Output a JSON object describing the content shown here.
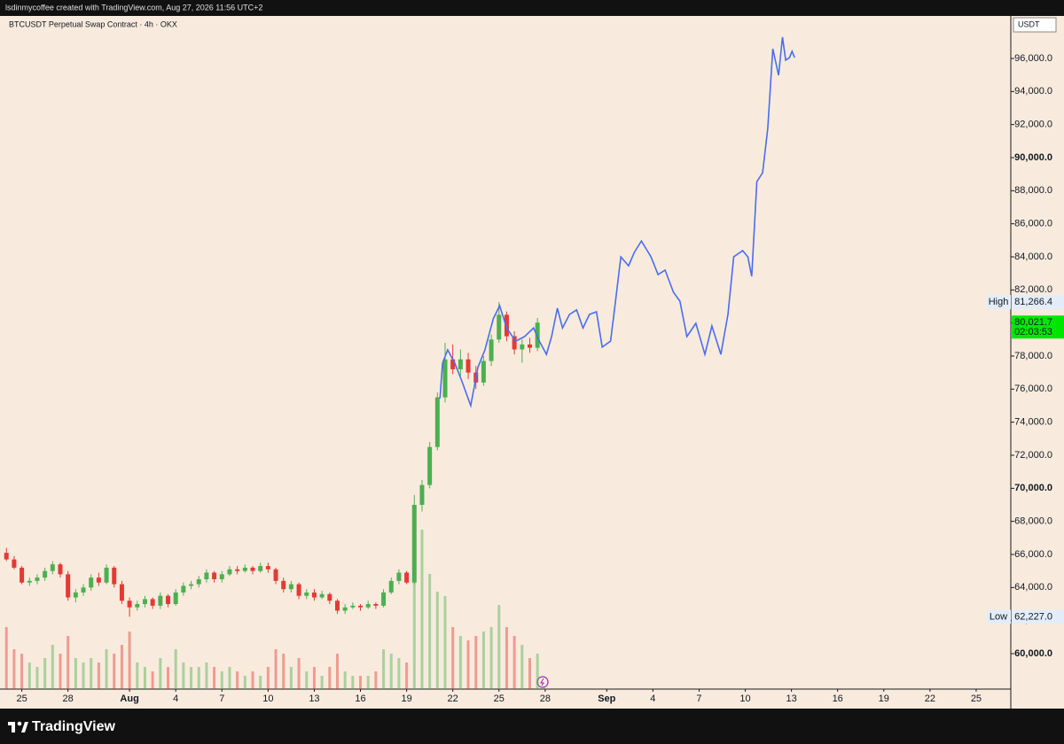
{
  "header": "lsdinmycoffee created with TradingView.com, Aug 27, 2026 11:56 UTC+2",
  "footer": "TradingView",
  "chart_data": {
    "type": "candlestick",
    "title": "BTCUSDT Perpetual Swap Contract · 4h · OKX",
    "currency": "USDT",
    "ylim": [
      57857,
      98571
    ],
    "yticks": [
      {
        "value": 60000,
        "label": "60,000.0"
      },
      {
        "value": 62000,
        "label": "62,000.0"
      },
      {
        "value": 64000,
        "label": "64,000.0"
      },
      {
        "value": 66000,
        "label": "66,000.0"
      },
      {
        "value": 68000,
        "label": "68,000.0"
      },
      {
        "value": 70000,
        "label": "70,000.0"
      },
      {
        "value": 72000,
        "label": "72,000.0"
      },
      {
        "value": 74000,
        "label": "74,000.0"
      },
      {
        "value": 76000,
        "label": "76,000.0"
      },
      {
        "value": 78000,
        "label": "78,000.0"
      },
      {
        "value": 80000,
        "label": "80,000.0"
      },
      {
        "value": 82000,
        "label": "82,000.0"
      },
      {
        "value": 84000,
        "label": "84,000.0"
      },
      {
        "value": 86000,
        "label": "86,000.0"
      },
      {
        "value": 88000,
        "label": "88,000.0"
      },
      {
        "value": 90000,
        "label": "90,000.0"
      },
      {
        "value": 92000,
        "label": "92,000.0"
      },
      {
        "value": 94000,
        "label": "94,000.0"
      },
      {
        "value": 96000,
        "label": "96,000.0"
      }
    ],
    "xlim": [
      "2026-07-23T14:00",
      "2026-09-27T06:00"
    ],
    "xticks": [
      {
        "value": "2026-07-25T00:00",
        "label": "25"
      },
      {
        "value": "2026-07-28T00:00",
        "label": "28"
      },
      {
        "value": "2026-08-01T00:00",
        "label": "Aug"
      },
      {
        "value": "2026-08-04T00:00",
        "label": "4"
      },
      {
        "value": "2026-08-07T00:00",
        "label": "7"
      },
      {
        "value": "2026-08-10T00:00",
        "label": "10"
      },
      {
        "value": "2026-08-13T00:00",
        "label": "13"
      },
      {
        "value": "2026-08-16T00:00",
        "label": "16"
      },
      {
        "value": "2026-08-19T00:00",
        "label": "19"
      },
      {
        "value": "2026-08-22T00:00",
        "label": "22"
      },
      {
        "value": "2026-08-25T00:00",
        "label": "25"
      },
      {
        "value": "2026-08-28T00:00",
        "label": "28"
      },
      {
        "value": "2026-09-01T00:00",
        "label": "Sep"
      },
      {
        "value": "2026-09-04T00:00",
        "label": "4"
      },
      {
        "value": "2026-09-07T00:00",
        "label": "7"
      },
      {
        "value": "2026-09-10T00:00",
        "label": "10"
      },
      {
        "value": "2026-09-13T00:00",
        "label": "13"
      },
      {
        "value": "2026-09-16T00:00",
        "label": "16"
      },
      {
        "value": "2026-09-19T00:00",
        "label": "19"
      },
      {
        "value": "2026-09-22T00:00",
        "label": "22"
      },
      {
        "value": "2026-09-25T00:00",
        "label": "25"
      }
    ],
    "up_color": "#4caf50",
    "down_color": "#e53935",
    "candles": {
      "x": [
        "2026-07-24T00:00",
        "2026-07-24T12:00",
        "2026-07-25T00:00",
        "2026-07-25T12:00",
        "2026-07-26T00:00",
        "2026-07-26T12:00",
        "2026-07-27T00:00",
        "2026-07-27T12:00",
        "2026-07-28T00:00",
        "2026-07-28T12:00",
        "2026-07-29T00:00",
        "2026-07-29T12:00",
        "2026-07-30T00:00",
        "2026-07-30T12:00",
        "2026-07-31T00:00",
        "2026-07-31T12:00",
        "2026-08-01T00:00",
        "2026-08-01T12:00",
        "2026-08-02T00:00",
        "2026-08-02T12:00",
        "2026-08-03T00:00",
        "2026-08-03T12:00",
        "2026-08-04T00:00",
        "2026-08-04T12:00",
        "2026-08-05T00:00",
        "2026-08-05T12:00",
        "2026-08-06T00:00",
        "2026-08-06T12:00",
        "2026-08-07T00:00",
        "2026-08-07T12:00",
        "2026-08-08T00:00",
        "2026-08-08T12:00",
        "2026-08-09T00:00",
        "2026-08-09T12:00",
        "2026-08-10T00:00",
        "2026-08-10T12:00",
        "2026-08-11T00:00",
        "2026-08-11T12:00",
        "2026-08-12T00:00",
        "2026-08-12T12:00",
        "2026-08-13T00:00",
        "2026-08-13T12:00",
        "2026-08-14T00:00",
        "2026-08-14T12:00",
        "2026-08-15T00:00",
        "2026-08-15T12:00",
        "2026-08-16T00:00",
        "2026-08-16T12:00",
        "2026-08-17T00:00",
        "2026-08-17T12:00",
        "2026-08-18T00:00",
        "2026-08-18T12:00",
        "2026-08-19T00:00",
        "2026-08-19T12:00",
        "2026-08-20T00:00",
        "2026-08-20T12:00",
        "2026-08-21T00:00",
        "2026-08-21T12:00",
        "2026-08-22T00:00",
        "2026-08-22T12:00",
        "2026-08-23T00:00",
        "2026-08-23T12:00",
        "2026-08-24T00:00",
        "2026-08-24T12:00",
        "2026-08-25T00:00",
        "2026-08-25T12:00",
        "2026-08-26T00:00",
        "2026-08-26T12:00",
        "2026-08-27T00:00",
        "2026-08-27T12:00"
      ],
      "open": [
        66100,
        65700,
        65200,
        64300,
        64400,
        64600,
        65000,
        65400,
        64800,
        63400,
        63700,
        64000,
        64600,
        64300,
        65200,
        64200,
        63200,
        62800,
        63000,
        63300,
        62900,
        63500,
        63000,
        63700,
        64100,
        64200,
        64500,
        64900,
        64500,
        64800,
        65100,
        65000,
        65200,
        65000,
        65300,
        65100,
        64400,
        63900,
        64200,
        63500,
        63700,
        63400,
        63600,
        63200,
        62600,
        62800,
        62900,
        62800,
        63000,
        62900,
        63700,
        64400,
        64900,
        64300,
        69000,
        70200,
        72500,
        75500,
        77800,
        77200,
        77800,
        77000,
        76400,
        77700,
        79000,
        80500,
        79200,
        78400,
        78700,
        78500
      ],
      "high": [
        66400,
        65900,
        65300,
        64600,
        64800,
        65200,
        65600,
        65500,
        65000,
        63900,
        64200,
        64800,
        64900,
        65400,
        65300,
        64400,
        63400,
        63200,
        63500,
        63400,
        63700,
        63600,
        63900,
        64300,
        64400,
        64700,
        65100,
        65000,
        65000,
        65300,
        65300,
        65400,
        65300,
        65500,
        65500,
        65200,
        64600,
        64400,
        64300,
        63900,
        63900,
        63800,
        63700,
        63300,
        63000,
        63100,
        63000,
        63200,
        63100,
        63900,
        64600,
        65100,
        65000,
        69600,
        70500,
        72800,
        75800,
        78800,
        78700,
        78400,
        78200,
        77400,
        78000,
        79300,
        81266.4,
        80700,
        79500,
        79000,
        79100,
        80300
      ],
      "low": [
        65600,
        65100,
        64200,
        64100,
        64200,
        64400,
        64800,
        64600,
        63200,
        63100,
        63500,
        63800,
        64100,
        64200,
        64000,
        63000,
        62227,
        62600,
        62800,
        62700,
        62700,
        62800,
        62900,
        63500,
        63900,
        64000,
        64300,
        64300,
        64300,
        64700,
        64800,
        64900,
        64800,
        64900,
        64900,
        64200,
        63700,
        63700,
        63300,
        63300,
        63200,
        63300,
        63000,
        62400,
        62400,
        62700,
        62600,
        62700,
        62700,
        62800,
        63600,
        64200,
        64200,
        64200,
        68600,
        70000,
        72300,
        75200,
        76900,
        76800,
        76600,
        76000,
        76200,
        77400,
        78800,
        78900,
        78100,
        77600,
        78200,
        78300
      ],
      "close": [
        65700,
        65200,
        64300,
        64400,
        64600,
        65000,
        65400,
        64800,
        63400,
        63700,
        64000,
        64600,
        64300,
        65200,
        64200,
        63200,
        62800,
        63000,
        63300,
        62900,
        63500,
        63000,
        63700,
        64100,
        64200,
        64500,
        64900,
        64500,
        64800,
        65100,
        65000,
        65200,
        65000,
        65300,
        65100,
        64400,
        63900,
        64200,
        63500,
        63700,
        63400,
        63600,
        63200,
        62600,
        62800,
        62900,
        62800,
        63000,
        62900,
        63700,
        64400,
        64900,
        64300,
        69000,
        70200,
        72500,
        75500,
        77800,
        77200,
        77800,
        77000,
        76400,
        77700,
        79000,
        80500,
        79200,
        78400,
        78700,
        78500,
        80021.7
      ],
      "volume": [
        70,
        45,
        40,
        30,
        25,
        35,
        50,
        40,
        60,
        35,
        30,
        35,
        30,
        45,
        40,
        50,
        65,
        30,
        25,
        20,
        35,
        25,
        45,
        30,
        25,
        25,
        30,
        25,
        20,
        25,
        20,
        15,
        20,
        15,
        25,
        45,
        40,
        25,
        35,
        20,
        25,
        15,
        25,
        40,
        20,
        15,
        15,
        15,
        20,
        45,
        40,
        35,
        30,
        120,
        180,
        130,
        110,
        105,
        70,
        60,
        55,
        60,
        65,
        70,
        95,
        70,
        60,
        50,
        35,
        40
      ]
    },
    "line": {
      "color": "#4a6cf0",
      "x": [
        "2026-08-21T04:00",
        "2026-08-21T08:00",
        "2026-08-21T16:00",
        "2026-08-22T03:00",
        "2026-08-22T14:00",
        "2026-08-23T04:00",
        "2026-08-23T15:00",
        "2026-08-24T02:00",
        "2026-08-24T15:00",
        "2026-08-25T01:00",
        "2026-08-25T12:00",
        "2026-08-26T02:00",
        "2026-08-26T16:00",
        "2026-08-27T06:00",
        "2026-08-27T15:00",
        "2026-08-28T02:00",
        "2026-08-28T10:00",
        "2026-08-28T19:00",
        "2026-08-29T03:00",
        "2026-08-29T14:00",
        "2026-08-30T01:00",
        "2026-08-30T11:00",
        "2026-08-30T21:00",
        "2026-08-31T08:00",
        "2026-08-31T17:00",
        "2026-09-01T06:00",
        "2026-09-01T12:00",
        "2026-09-01T22:00",
        "2026-09-02T10:00",
        "2026-09-02T19:00",
        "2026-09-03T06:00",
        "2026-09-03T21:00",
        "2026-09-04T08:00",
        "2026-09-04T19:00",
        "2026-09-05T08:00",
        "2026-09-05T18:00",
        "2026-09-06T05:00",
        "2026-09-06T19:00",
        "2026-09-07T09:00",
        "2026-09-07T20:00",
        "2026-09-08T10:00",
        "2026-09-08T21:00",
        "2026-09-09T06:00",
        "2026-09-09T20:00",
        "2026-09-10T04:00",
        "2026-09-10T10:00",
        "2026-09-10T18:00",
        "2026-09-11T03:00",
        "2026-09-11T11:00",
        "2026-09-11T19:00",
        "2026-09-12T04:00",
        "2026-09-12T10:00",
        "2026-09-12T15:00",
        "2026-09-12T21:00",
        "2026-09-13T01:00",
        "2026-09-13T05:00"
      ],
      "values": [
        75430,
        77570,
        78375,
        77570,
        76500,
        75000,
        77300,
        78375,
        80250,
        81050,
        79700,
        78900,
        79180,
        79700,
        78900,
        78100,
        79180,
        80890,
        79700,
        80520,
        80790,
        79700,
        80520,
        80680,
        78540,
        78900,
        80790,
        84000,
        83460,
        84270,
        84960,
        84000,
        82930,
        83200,
        81860,
        81320,
        79180,
        79980,
        78100,
        79820,
        78100,
        80520,
        84000,
        84375,
        84000,
        82820,
        88550,
        89090,
        91770,
        96590,
        94980,
        97290,
        95900,
        96050,
        96430,
        96050
      ]
    },
    "high_marker": {
      "label": "High",
      "value": 81266.4,
      "value_label": "81,266.4"
    },
    "low_marker": {
      "label": "Low",
      "value": 62227.0,
      "value_label": "62,227.0"
    },
    "last_price": {
      "value": 80021.7,
      "value_label": "80,021.7",
      "countdown": "02:03:53"
    }
  }
}
